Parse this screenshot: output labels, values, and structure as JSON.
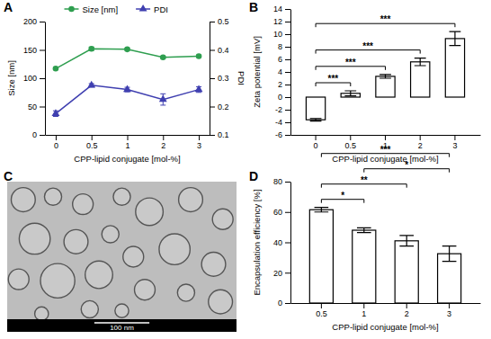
{
  "chart_data": [
    {
      "type": "line",
      "title": "A",
      "categories": [
        "0",
        "0.5",
        "1",
        "2",
        "3"
      ],
      "xlabel": "CPP-lipid conjugate [mol-%]",
      "ylabel": "Size [nm]",
      "y2label": "PDI",
      "ylim": [
        0,
        200
      ],
      "yticks": [
        0,
        50,
        100,
        150,
        200
      ],
      "y2lim": [
        0.1,
        0.5
      ],
      "y2ticks": [
        0.1,
        0.2,
        0.3,
        0.4,
        0.5
      ],
      "legend": "top",
      "grid": false,
      "series": [
        {
          "name": "Size [nm]",
          "color": "#2e9e4f",
          "marker": "circle",
          "line_style": "solid",
          "values": [
            117,
            152,
            151,
            137,
            139
          ],
          "errors": [
            2,
            3,
            2,
            2,
            2
          ]
        },
        {
          "name": "PDI",
          "color": "#3f3fb0",
          "marker": "triangle",
          "line_style": "solid",
          "axis": "y2",
          "values": [
            0.175,
            0.275,
            0.26,
            0.225,
            0.26
          ],
          "errors": [
            0.01,
            0.006,
            0.008,
            0.02,
            0.01
          ]
        }
      ]
    },
    {
      "type": "bar",
      "title": "B",
      "categories": [
        "0",
        "0.5",
        "1",
        "2",
        "3"
      ],
      "xlabel": "CPP-lipid conjugate [mol-%]",
      "ylabel": "Zeta potential [mV]",
      "ylim": [
        -6,
        14
      ],
      "yticks": [
        -6,
        -4,
        -2,
        0,
        2,
        4,
        6,
        8,
        10,
        12,
        14
      ],
      "color": "#ffffff",
      "grid": false,
      "values": [
        -3.6,
        0.6,
        3.3,
        5.6,
        9.3
      ],
      "errors": [
        0.2,
        0.4,
        0.3,
        0.6,
        1.1
      ],
      "significance": [
        {
          "between": [
            "0",
            "0.5"
          ],
          "label": "***"
        },
        {
          "between": [
            "0",
            "1"
          ],
          "label": "***"
        },
        {
          "between": [
            "0",
            "2"
          ],
          "label": "***"
        },
        {
          "between": [
            "0",
            "3"
          ],
          "label": "***"
        }
      ]
    },
    {
      "type": "image",
      "title": "C",
      "scale_bar": "100 nm"
    },
    {
      "type": "bar",
      "title": "D",
      "categories": [
        "0.5",
        "1",
        "2",
        "3"
      ],
      "xlabel": "CPP-lipid conjugate [mol-%]",
      "ylabel": "Encapsulation efficiency [%]",
      "ylim": [
        0,
        80
      ],
      "yticks": [
        0,
        20,
        40,
        60,
        80
      ],
      "color": "#ffffff",
      "grid": false,
      "values": [
        61.5,
        48,
        41,
        32.5
      ],
      "errors": [
        1.5,
        1.5,
        3.5,
        5
      ],
      "significance": [
        {
          "between": [
            "0.5",
            "1"
          ],
          "label": "*"
        },
        {
          "between": [
            "0.5",
            "2"
          ],
          "label": "**"
        },
        {
          "between": [
            "0.5",
            "3"
          ],
          "label": "***"
        },
        {
          "between": [
            "1",
            "3"
          ],
          "label": "*"
        }
      ]
    }
  ]
}
